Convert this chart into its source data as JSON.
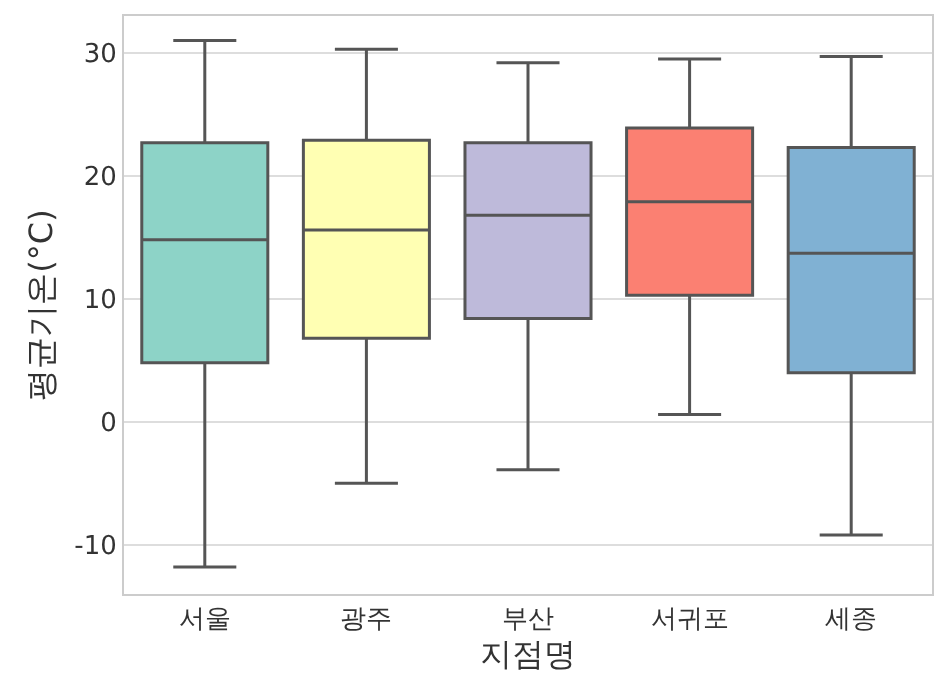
{
  "chart_data": {
    "type": "box",
    "xlabel": "지점명",
    "ylabel": "평균기온(°C)",
    "categories": [
      "서울",
      "광주",
      "부산",
      "서귀포",
      "세종"
    ],
    "colors": [
      "#8dd3c7",
      "#ffffb3",
      "#bebada",
      "#fb8072",
      "#80b1d3"
    ],
    "boxes": [
      {
        "low": -11.8,
        "q1": 4.8,
        "median": 14.8,
        "q3": 22.7,
        "high": 31.0
      },
      {
        "low": -5.0,
        "q1": 6.8,
        "median": 15.6,
        "q3": 22.9,
        "high": 30.3
      },
      {
        "low": -3.9,
        "q1": 8.4,
        "median": 16.8,
        "q3": 22.7,
        "high": 29.2
      },
      {
        "low": 0.6,
        "q1": 10.3,
        "median": 17.9,
        "q3": 23.9,
        "high": 29.5
      },
      {
        "low": -9.2,
        "q1": 4.0,
        "median": 13.7,
        "q3": 22.3,
        "high": 29.7
      }
    ],
    "ylim": [
      -14,
      33
    ],
    "yticks": [
      -10,
      0,
      10,
      20,
      30
    ],
    "grid": "y",
    "legend": false
  }
}
